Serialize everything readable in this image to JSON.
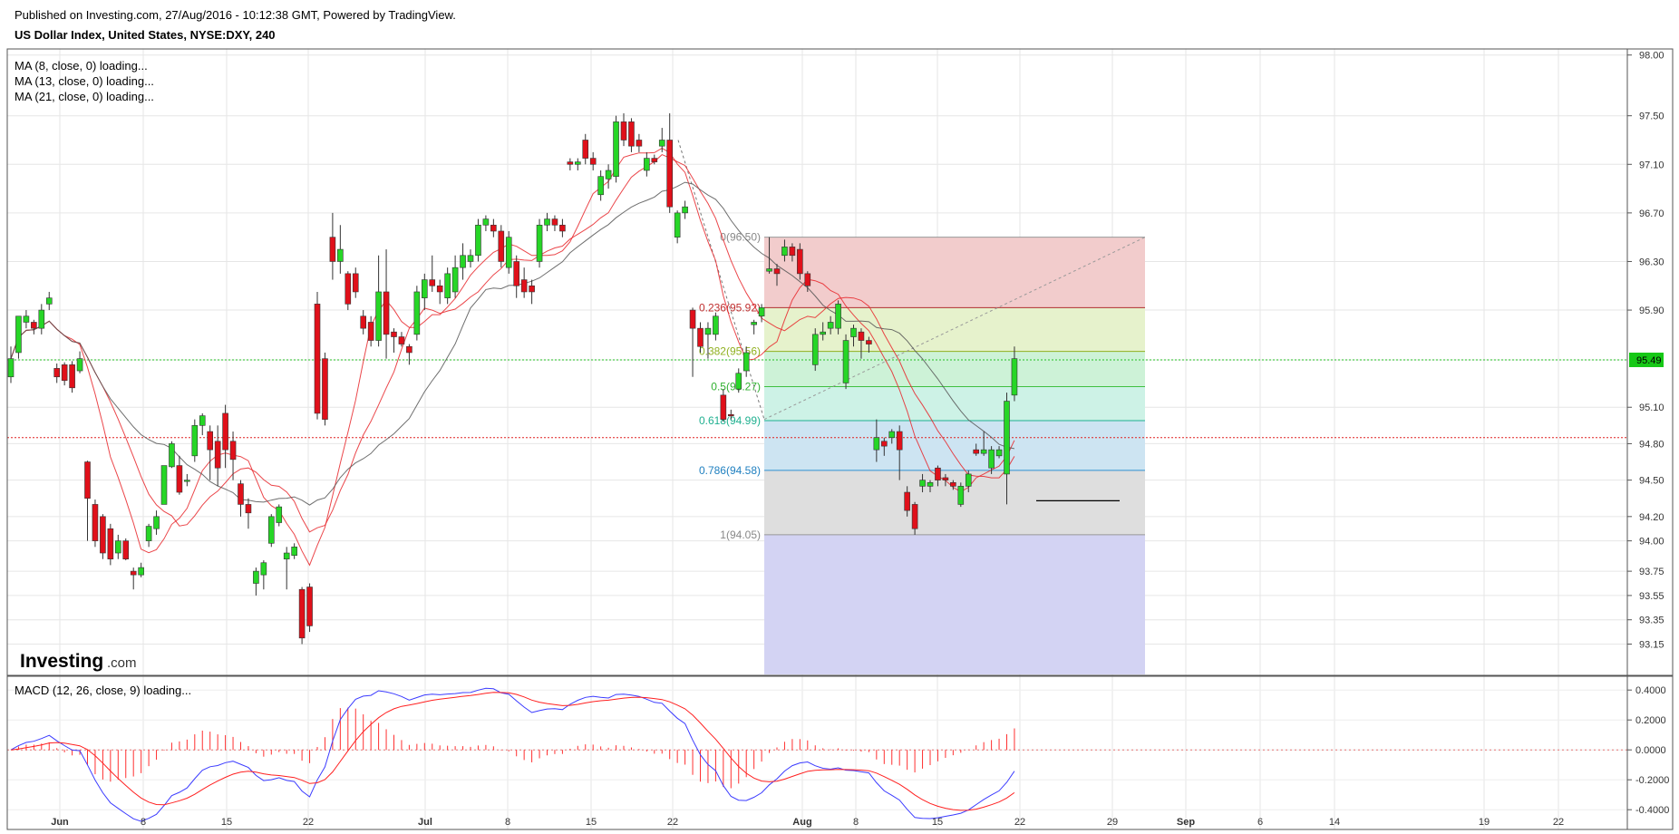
{
  "header": {
    "published": "Published on Investing.com, 27/Aug/2016 - 10:12:38 GMT, Powered by TradingView.",
    "instrument": "US Dollar Index, United States, NYSE:DXY, 240"
  },
  "indicators": {
    "ma8": "MA (8, close, 0) loading...",
    "ma13": "MA (13, close, 0) loading...",
    "ma21": "MA (21, close, 0) loading...",
    "macd": "MACD (12, 26, close, 9) loading..."
  },
  "logo": {
    "word": "Investing",
    "suffix": ".com"
  },
  "colors": {
    "up": "#26d626",
    "down": "#e0101a",
    "ma_fast": "#e8262a",
    "ma_slow": "#555555",
    "macd": "#3b3bff",
    "signal": "#ff2020",
    "current_price_bg": "#16c816",
    "fib_0_236": "#f2cccc",
    "fib_236_382": "#e6f2cc",
    "fib_382_5": "#cdf2d7",
    "fib_5_618": "#cdf2e6",
    "fib_618_786": "#cde4f2",
    "fib_786_1": "#dedede",
    "fib_ext": "#d3d3f3"
  },
  "current_price": "95.49",
  "chart_data": {
    "type": "candlestick",
    "x_tick_labels": [
      "Jun",
      "8",
      "15",
      "22",
      "Jul",
      "8",
      "15",
      "22",
      "Aug",
      "8",
      "15",
      "22",
      "29",
      "Sep",
      "6",
      "14",
      "19",
      "22"
    ],
    "price_axis": {
      "range": [
        92.9,
        98.05
      ],
      "ticks": [
        "98.00",
        "97.50",
        "97.10",
        "96.70",
        "96.30",
        "95.90",
        "95.49",
        "95.10",
        "94.80",
        "94.50",
        "94.20",
        "94.00",
        "93.75",
        "93.55",
        "93.35",
        "93.15"
      ]
    },
    "candles": [
      [
        95.35,
        95.5,
        95.3,
        95.6
      ],
      [
        95.55,
        95.85,
        95.5,
        95.85
      ],
      [
        95.8,
        95.85,
        95.75,
        95.9
      ],
      [
        95.8,
        95.75,
        95.7,
        95.82
      ],
      [
        95.75,
        95.9,
        95.7,
        95.95
      ],
      [
        95.95,
        96.0,
        95.9,
        96.05
      ],
      [
        95.42,
        95.35,
        95.3,
        95.46
      ],
      [
        95.45,
        95.32,
        95.28,
        95.47
      ],
      [
        95.45,
        95.26,
        95.22,
        95.48
      ],
      [
        95.4,
        95.5,
        95.38,
        95.56
      ],
      [
        94.65,
        94.35,
        94.0,
        94.66
      ],
      [
        94.3,
        94.0,
        93.95,
        94.34
      ],
      [
        94.2,
        93.9,
        93.85,
        94.22
      ],
      [
        94.1,
        93.85,
        93.8,
        94.14
      ],
      [
        93.9,
        94.0,
        93.85,
        94.05
      ],
      [
        94.0,
        93.85,
        93.84,
        94.02
      ],
      [
        93.75,
        93.72,
        93.6,
        93.78
      ],
      [
        93.72,
        93.78,
        93.7,
        93.82
      ],
      [
        94.0,
        94.12,
        93.95,
        94.14
      ],
      [
        94.1,
        94.2,
        94.05,
        94.25
      ],
      [
        94.3,
        94.62,
        94.3,
        94.62
      ],
      [
        94.61,
        94.8,
        94.6,
        94.82
      ],
      [
        94.62,
        94.4,
        94.38,
        94.7
      ],
      [
        94.5,
        94.5,
        94.45,
        94.55
      ],
      [
        94.7,
        94.95,
        94.65,
        95.0
      ],
      [
        94.95,
        95.03,
        94.87,
        95.05
      ],
      [
        94.9,
        94.75,
        94.5,
        94.95
      ],
      [
        94.82,
        94.6,
        94.45,
        94.95
      ],
      [
        95.05,
        94.75,
        94.6,
        95.12
      ],
      [
        94.82,
        94.67,
        94.5,
        94.9
      ],
      [
        94.47,
        94.3,
        94.2,
        94.5
      ],
      [
        94.3,
        94.23,
        94.1,
        94.35
      ],
      [
        93.65,
        93.75,
        93.55,
        93.78
      ],
      [
        93.72,
        93.82,
        93.6,
        93.84
      ],
      [
        93.98,
        94.2,
        93.95,
        94.22
      ],
      [
        94.15,
        94.28,
        94.12,
        94.3
      ],
      [
        93.85,
        93.9,
        93.6,
        93.95
      ],
      [
        93.88,
        93.95,
        93.85,
        93.98
      ],
      [
        93.6,
        93.2,
        93.15,
        93.62
      ],
      [
        93.62,
        93.3,
        93.25,
        93.65
      ],
      [
        95.95,
        95.05,
        95.0,
        96.05
      ],
      [
        95.5,
        95.0,
        94.95,
        95.55
      ],
      [
        96.5,
        96.3,
        96.15,
        96.7
      ],
      [
        96.3,
        96.4,
        96.2,
        96.6
      ],
      [
        96.2,
        95.95,
        95.9,
        96.22
      ],
      [
        96.2,
        96.05,
        96.0,
        96.25
      ],
      [
        95.85,
        95.75,
        95.7,
        95.9
      ],
      [
        95.8,
        95.65,
        95.6,
        95.85
      ],
      [
        95.65,
        96.05,
        95.6,
        96.35
      ],
      [
        96.05,
        95.7,
        95.5,
        96.4
      ],
      [
        95.72,
        95.68,
        95.55,
        95.75
      ],
      [
        95.68,
        95.62,
        95.6,
        95.72
      ],
      [
        95.6,
        95.55,
        95.45,
        95.62
      ],
      [
        95.7,
        96.05,
        95.65,
        96.1
      ],
      [
        96.0,
        96.15,
        95.9,
        96.2
      ],
      [
        96.15,
        96.1,
        96.05,
        96.35
      ],
      [
        96.1,
        96.05,
        95.95,
        96.15
      ],
      [
        96.0,
        96.2,
        95.95,
        96.25
      ],
      [
        96.05,
        96.25,
        96.0,
        96.35
      ],
      [
        96.25,
        96.35,
        96.15,
        96.45
      ],
      [
        96.3,
        96.35,
        96.25,
        96.4
      ],
      [
        96.35,
        96.6,
        96.3,
        96.65
      ],
      [
        96.6,
        96.65,
        96.55,
        96.68
      ],
      [
        96.6,
        96.55,
        96.5,
        96.65
      ],
      [
        96.55,
        96.3,
        96.25,
        96.6
      ],
      [
        96.25,
        96.5,
        96.2,
        96.55
      ],
      [
        96.3,
        96.1,
        96.0,
        96.35
      ],
      [
        96.15,
        96.05,
        96.0,
        96.25
      ],
      [
        96.1,
        96.05,
        95.95,
        96.15
      ],
      [
        96.3,
        96.6,
        96.25,
        96.65
      ],
      [
        96.6,
        96.65,
        96.55,
        96.7
      ],
      [
        96.65,
        96.6,
        96.55,
        96.68
      ],
      [
        96.6,
        96.55,
        96.5,
        96.65
      ],
      [
        97.12,
        97.1,
        97.05,
        97.15
      ],
      [
        97.1,
        97.12,
        97.05,
        97.15
      ],
      [
        97.3,
        97.15,
        97.1,
        97.35
      ],
      [
        97.15,
        97.1,
        97.05,
        97.2
      ],
      [
        96.85,
        97.0,
        96.8,
        97.05
      ],
      [
        96.98,
        97.05,
        96.9,
        97.1
      ],
      [
        97.0,
        97.45,
        96.95,
        97.5
      ],
      [
        97.45,
        97.3,
        97.25,
        97.52
      ],
      [
        97.45,
        97.25,
        97.2,
        97.48
      ],
      [
        97.3,
        97.25,
        97.2,
        97.35
      ],
      [
        97.05,
        97.15,
        97.0,
        97.2
      ],
      [
        97.15,
        97.12,
        97.1,
        97.18
      ],
      [
        97.25,
        97.3,
        97.2,
        97.4
      ],
      [
        97.3,
        96.75,
        96.7,
        97.52
      ],
      [
        96.5,
        96.7,
        96.45,
        96.72
      ],
      [
        96.7,
        96.75,
        96.65,
        96.8
      ],
      [
        95.9,
        95.75,
        95.35,
        95.92
      ],
      [
        95.75,
        95.6,
        95.55,
        95.8
      ],
      [
        95.7,
        95.75,
        95.5,
        95.8
      ],
      [
        95.7,
        95.85,
        95.65,
        95.88
      ],
      [
        95.2,
        95.0,
        94.98,
        95.25
      ],
      [
        95.04,
        95.03,
        95.0,
        95.08
      ],
      [
        95.25,
        95.38,
        95.22,
        95.42
      ],
      [
        95.4,
        95.55,
        95.35,
        95.6
      ],
      [
        95.78,
        95.8,
        95.7,
        95.82
      ],
      [
        95.85,
        95.92,
        95.8,
        95.95
      ],
      [
        96.22,
        96.24,
        96.2,
        96.5
      ],
      [
        96.24,
        96.2,
        96.1,
        96.28
      ],
      [
        96.35,
        96.42,
        96.3,
        96.48
      ],
      [
        96.42,
        96.35,
        96.3,
        96.45
      ],
      [
        96.4,
        96.2,
        96.15,
        96.45
      ],
      [
        96.2,
        96.1,
        96.05,
        96.22
      ],
      [
        95.45,
        95.7,
        95.4,
        95.75
      ],
      [
        95.7,
        95.72,
        95.65,
        95.8
      ],
      [
        95.75,
        95.8,
        95.7,
        95.85
      ],
      [
        95.75,
        95.95,
        95.7,
        95.98
      ],
      [
        95.3,
        95.65,
        95.25,
        95.7
      ],
      [
        95.68,
        95.75,
        95.6,
        95.78
      ],
      [
        95.72,
        95.65,
        95.5,
        95.75
      ],
      [
        95.65,
        95.62,
        95.55,
        95.68
      ],
      [
        94.75,
        94.85,
        94.65,
        95.0
      ],
      [
        94.82,
        94.78,
        94.7,
        94.85
      ],
      [
        94.85,
        94.9,
        94.8,
        94.92
      ],
      [
        94.9,
        94.75,
        94.5,
        94.95
      ],
      [
        94.4,
        94.25,
        94.2,
        94.45
      ],
      [
        94.3,
        94.1,
        94.05,
        94.32
      ],
      [
        94.45,
        94.5,
        94.4,
        94.55
      ],
      [
        94.45,
        94.48,
        94.4,
        94.5
      ],
      [
        94.6,
        94.5,
        94.45,
        94.62
      ],
      [
        94.52,
        94.5,
        94.45,
        94.55
      ],
      [
        94.48,
        94.45,
        94.42,
        94.5
      ],
      [
        94.3,
        94.45,
        94.28,
        94.48
      ],
      [
        94.45,
        94.55,
        94.4,
        94.58
      ],
      [
        94.75,
        94.72,
        94.7,
        94.8
      ],
      [
        94.72,
        94.75,
        94.7,
        94.9
      ],
      [
        94.6,
        94.75,
        94.55,
        94.78
      ],
      [
        94.7,
        94.75,
        94.68,
        94.78
      ],
      [
        94.55,
        95.15,
        94.3,
        95.22
      ],
      [
        95.2,
        95.5,
        95.15,
        95.6
      ]
    ],
    "macd_axis": {
      "range": [
        -0.52,
        0.48
      ],
      "ticks": [
        "0.4000",
        "0.2000",
        "0.0000",
        "-0.2000",
        "-0.4000"
      ]
    },
    "fibonacci": {
      "levels": [
        {
          "label": "0(96.50)",
          "price": 96.5
        },
        {
          "label": "0.236(95.92)",
          "price": 95.92
        },
        {
          "label": "0.382(95.56)",
          "price": 95.56
        },
        {
          "label": "0.5(95.27)",
          "price": 95.27
        },
        {
          "label": "0.618(94.99)",
          "price": 94.99
        },
        {
          "label": "0.786(94.58)",
          "price": 94.58
        },
        {
          "label": "1(94.05)",
          "price": 94.05
        }
      ]
    },
    "horizontal_lines": [
      95.49,
      94.85
    ]
  }
}
